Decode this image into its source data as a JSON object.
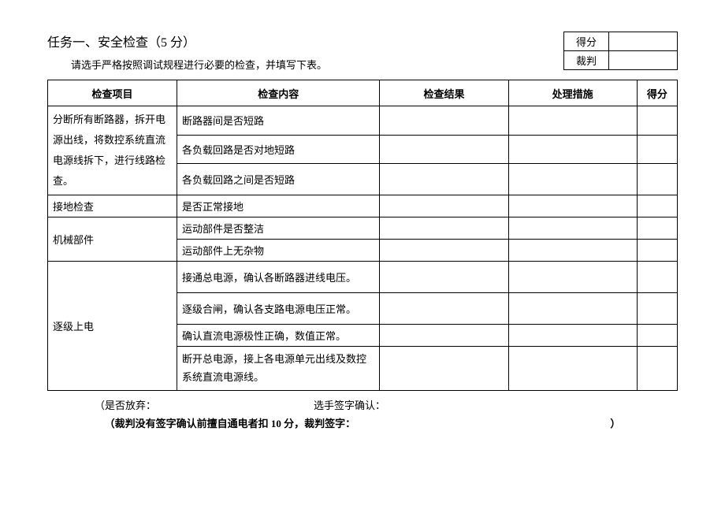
{
  "title": "任务一、安全检查（5 分）",
  "subtitle": "请选手严格按照调试规程进行必要的检查，并填写下表。",
  "scorebox": {
    "label1": "得分",
    "label2": "裁判"
  },
  "headers": {
    "project": "检查项目",
    "content": "检查内容",
    "result": "检查结果",
    "measure": "处理措施",
    "score": "得分"
  },
  "rows": {
    "r1_project": "分断所有断路器，拆开电源出线，将数控系统直流电源线拆下，进行线路检查。",
    "r1a": "断路器间是否短路",
    "r1b": "各负载回路是否对地短路",
    "r1c": "各负载回路之间是否短路",
    "r2_project": "接地检查",
    "r2a": "是否正常接地",
    "r3_project": "机械部件",
    "r3a": "运动部件是否整洁",
    "r3b": "运动部件上无杂物",
    "r4_project": "逐级上电",
    "r4a": "接通总电源，确认各断路器进线电压。",
    "r4b": "逐级合闸，确认各支路电源电压正常。",
    "r4c": "确认直流电源极性正确，数值正常。",
    "r4d": "断开总电源，接上各电源单元出线及数控系统直流电源线。"
  },
  "footer": {
    "abandon": "（是否放弃：",
    "sign": "选手签字确认：",
    "note": "（裁判没有签字确认前擅自通电者扣 10 分，裁判签字：",
    "close": "）"
  }
}
